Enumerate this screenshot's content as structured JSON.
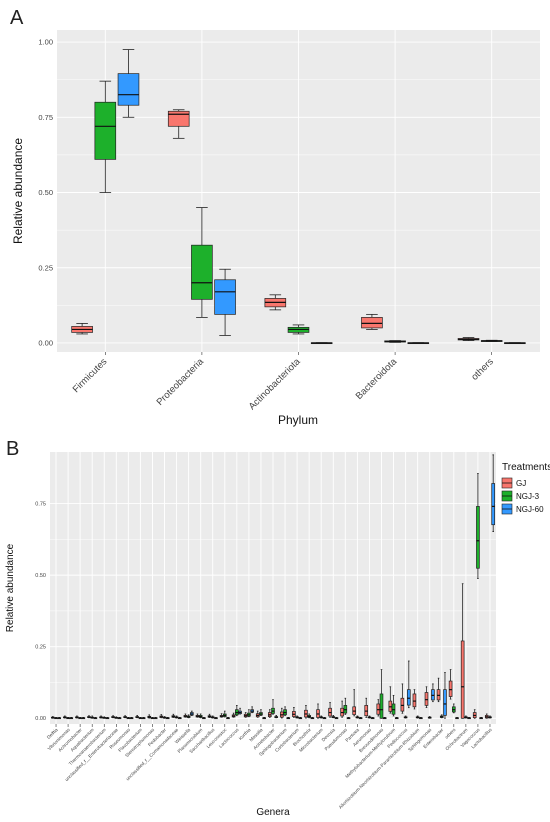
{
  "panels": {
    "a_letter": "A",
    "b_letter": "B"
  },
  "colors": {
    "GJ": "#F8766D",
    "NGJ-3": "#1DB02B",
    "NGJ-60": "#3399FF",
    "panel_bg": "#EBEBEB",
    "grid": "#FFFFFF"
  },
  "legend": {
    "title": "Treatments",
    "items": [
      "GJ",
      "NGJ-3",
      "NGJ-60"
    ]
  },
  "chart_data": [
    {
      "type": "box",
      "panel": "A",
      "xlabel": "Phylum",
      "ylabel": "Relative abundance",
      "ylim": [
        -0.03,
        1.04
      ],
      "yticks": [
        "0.00",
        "0.25",
        "0.50",
        "0.75",
        "1.00"
      ],
      "grid": true,
      "categories": [
        "Firmicutes",
        "Proteobacteria",
        "Actinobacteriota",
        "Bacteroidota",
        "others"
      ],
      "series": [
        {
          "name": "GJ",
          "boxes": [
            {
              "min": 0.03,
              "q1": 0.035,
              "median": 0.045,
              "q3": 0.055,
              "max": 0.065
            },
            {
              "min": 0.68,
              "q1": 0.72,
              "median": 0.76,
              "q3": 0.77,
              "max": 0.775
            },
            {
              "min": 0.11,
              "q1": 0.12,
              "median": 0.135,
              "q3": 0.148,
              "max": 0.16
            },
            {
              "min": 0.045,
              "q1": 0.05,
              "median": 0.065,
              "q3": 0.085,
              "max": 0.095
            },
            {
              "min": 0.008,
              "q1": 0.01,
              "median": 0.012,
              "q3": 0.015,
              "max": 0.018
            }
          ]
        },
        {
          "name": "NGJ-3",
          "boxes": [
            {
              "min": 0.5,
              "q1": 0.61,
              "median": 0.72,
              "q3": 0.8,
              "max": 0.87
            },
            {
              "min": 0.085,
              "q1": 0.145,
              "median": 0.2,
              "q3": 0.325,
              "max": 0.45
            },
            {
              "min": 0.03,
              "q1": 0.035,
              "median": 0.045,
              "q3": 0.052,
              "max": 0.06
            },
            {
              "min": 0.002,
              "q1": 0.003,
              "median": 0.005,
              "q3": 0.007,
              "max": 0.008
            },
            {
              "min": 0.005,
              "q1": 0.006,
              "median": 0.007,
              "q3": 0.008,
              "max": 0.009
            }
          ]
        },
        {
          "name": "NGJ-60",
          "boxes": [
            {
              "min": 0.75,
              "q1": 0.79,
              "median": 0.825,
              "q3": 0.895,
              "max": 0.975
            },
            {
              "min": 0.025,
              "q1": 0.095,
              "median": 0.17,
              "q3": 0.21,
              "max": 0.245
            },
            {
              "min": 0.0,
              "q1": 0.0,
              "median": 0.0,
              "q3": 0.001,
              "max": 0.001
            },
            {
              "min": 0.0,
              "q1": 0.0,
              "median": 0.0,
              "q3": 0.001,
              "max": 0.001
            },
            {
              "min": 0.0,
              "q1": 0.0,
              "median": 0.0,
              "q3": 0.001,
              "max": 0.001
            }
          ]
        }
      ]
    },
    {
      "type": "box",
      "panel": "B",
      "xlabel": "Genera",
      "ylabel": "Relative abundance",
      "ylim": [
        -0.02,
        0.93
      ],
      "yticks": [
        "0.00",
        "0.25",
        "0.50",
        "0.75"
      ],
      "grid": true,
      "legend": "right",
      "categories": [
        "Delftia",
        "Vibrionimonas",
        "Achromobacter",
        "Aquabacterium",
        "Thermoanaerobacterium",
        "unclassified_f__Enterobacteriaceae",
        "Roseomonas",
        "Flavobacterium",
        "Stenotrophomonas",
        "Pedobacter",
        "unclassified_f__Comamonadaceae",
        "Weissella",
        "Planomicrobium",
        "Saccharibacillus",
        "Leuconostoc",
        "Lactococcus",
        "Kurthia",
        "Massilia",
        "Acinetobacter",
        "Sphingobacterium",
        "Curtobacterium",
        "Brochothrix",
        "Microbacterium",
        "Devosia",
        "Pseudomonas",
        "Pantoea",
        "Aeromonas",
        "Brevundimonas",
        "Methylobacterium-Methylorubrum",
        "Pediococcus",
        "Allorhizobium-Neorhizobium-Pararhizobium-Rhizobium",
        "Sphingomonas",
        "Enterobacter",
        "others",
        "Ochrobactrum",
        "Vagococcus",
        "Lactobacillus"
      ],
      "series": [
        {
          "name": "GJ",
          "medians": [
            0.002,
            0.003,
            0.003,
            0.004,
            0.003,
            0.004,
            0.004,
            0.004,
            0.004,
            0.005,
            0.006,
            0.007,
            0.007,
            0.006,
            0.007,
            0.008,
            0.009,
            0.01,
            0.012,
            0.012,
            0.014,
            0.015,
            0.015,
            0.02,
            0.02,
            0.025,
            0.025,
            0.03,
            0.04,
            0.045,
            0.06,
            0.065,
            0.08,
            0.1,
            0.11,
            0.01,
            0.005
          ],
          "q3": [
            0.004,
            0.005,
            0.005,
            0.006,
            0.005,
            0.006,
            0.006,
            0.006,
            0.007,
            0.008,
            0.009,
            0.01,
            0.01,
            0.009,
            0.01,
            0.012,
            0.014,
            0.016,
            0.02,
            0.022,
            0.024,
            0.028,
            0.03,
            0.035,
            0.035,
            0.04,
            0.045,
            0.05,
            0.06,
            0.07,
            0.085,
            0.09,
            0.1,
            0.13,
            0.27,
            0.02,
            0.01
          ],
          "max": [
            0.006,
            0.008,
            0.008,
            0.009,
            0.008,
            0.009,
            0.009,
            0.01,
            0.012,
            0.013,
            0.014,
            0.015,
            0.015,
            0.014,
            0.016,
            0.018,
            0.02,
            0.025,
            0.03,
            0.035,
            0.038,
            0.045,
            0.05,
            0.055,
            0.06,
            0.1,
            0.07,
            0.065,
            0.11,
            0.12,
            0.1,
            0.11,
            0.14,
            0.17,
            0.47,
            0.03,
            0.015
          ]
        },
        {
          "name": "NGJ-3",
          "medians": [
            0.001,
            0.001,
            0.001,
            0.002,
            0.002,
            0.002,
            0.001,
            0.001,
            0.001,
            0.002,
            0.003,
            0.005,
            0.006,
            0.003,
            0.01,
            0.02,
            0.012,
            0.015,
            0.025,
            0.02,
            0.003,
            0.006,
            0.003,
            0.004,
            0.03,
            0.003,
            0.003,
            0.03,
            0.03,
            0.003,
            0.003,
            0.002,
            0.005,
            0.03,
            0.003,
            0.62,
            0.003
          ],
          "q3": [
            0.002,
            0.002,
            0.002,
            0.004,
            0.003,
            0.003,
            0.002,
            0.002,
            0.002,
            0.004,
            0.005,
            0.008,
            0.01,
            0.005,
            0.015,
            0.03,
            0.018,
            0.02,
            0.035,
            0.03,
            0.005,
            0.01,
            0.005,
            0.006,
            0.045,
            0.005,
            0.005,
            0.085,
            0.05,
            0.005,
            0.005,
            0.004,
            0.008,
            0.04,
            0.005,
            0.74,
            0.005
          ],
          "max": [
            0.003,
            0.003,
            0.003,
            0.008,
            0.005,
            0.005,
            0.003,
            0.003,
            0.003,
            0.006,
            0.008,
            0.012,
            0.015,
            0.008,
            0.025,
            0.045,
            0.03,
            0.03,
            0.065,
            0.04,
            0.008,
            0.015,
            0.008,
            0.01,
            0.07,
            0.008,
            0.008,
            0.17,
            0.08,
            0.008,
            0.008,
            0.006,
            0.012,
            0.05,
            0.008,
            0.855,
            0.008
          ]
        },
        {
          "name": "NGJ-60",
          "medians": [
            0.001,
            0.001,
            0.001,
            0.001,
            0.001,
            0.001,
            0.001,
            0.001,
            0.001,
            0.001,
            0.001,
            0.015,
            0.001,
            0.001,
            0.001,
            0.02,
            0.025,
            0.001,
            0.004,
            0.001,
            0.001,
            0.001,
            0.001,
            0.001,
            0.001,
            0.001,
            0.001,
            0.001,
            0.001,
            0.07,
            0.001,
            0.08,
            0.05,
            0.001,
            0.001,
            0.001,
            0.74
          ],
          "q3": [
            0.002,
            0.002,
            0.002,
            0.002,
            0.002,
            0.002,
            0.002,
            0.002,
            0.002,
            0.002,
            0.002,
            0.02,
            0.002,
            0.002,
            0.002,
            0.025,
            0.03,
            0.002,
            0.006,
            0.002,
            0.002,
            0.002,
            0.002,
            0.002,
            0.002,
            0.002,
            0.002,
            0.002,
            0.002,
            0.1,
            0.002,
            0.1,
            0.1,
            0.002,
            0.002,
            0.002,
            0.82
          ],
          "max": [
            0.003,
            0.003,
            0.003,
            0.003,
            0.003,
            0.003,
            0.003,
            0.003,
            0.003,
            0.003,
            0.003,
            0.025,
            0.003,
            0.003,
            0.003,
            0.035,
            0.04,
            0.003,
            0.01,
            0.003,
            0.003,
            0.003,
            0.003,
            0.003,
            0.003,
            0.003,
            0.003,
            0.003,
            0.003,
            0.2,
            0.003,
            0.12,
            0.16,
            0.003,
            0.003,
            0.003,
            0.92
          ]
        }
      ]
    }
  ]
}
